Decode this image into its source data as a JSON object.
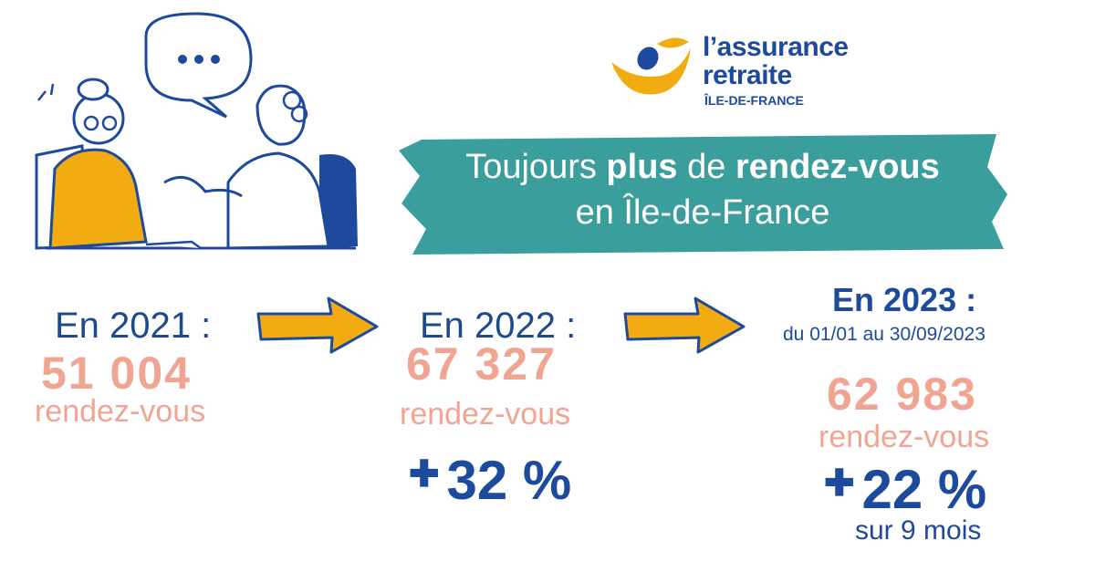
{
  "logo": {
    "line1": "l’assurance",
    "line2": "retraite",
    "region": "ÎLE-DE-FRANCE"
  },
  "banner": {
    "part1": "Toujours ",
    "bold1": "plus",
    "part2": " de ",
    "bold2": "rendez-vous",
    "line2": "en Île-de-France"
  },
  "stats": {
    "y2021": {
      "label": "En 2021 :",
      "value": "51 004",
      "unit": "rendez-vous"
    },
    "y2022": {
      "label": "En 2022 :",
      "value": "67 327",
      "unit": "rendez-vous",
      "change": "32 %"
    },
    "y2023": {
      "label": "En 2023 :",
      "period": "du 01/01 au 30/09/2023",
      "value": "62 983",
      "unit": "rendez-vous",
      "change": "22 %",
      "note": "sur 9 mois"
    }
  },
  "colors": {
    "navy": "#1d4a9c",
    "salmon": "#f0a593",
    "teal": "#3a9e9c",
    "gold": "#f2ac12"
  }
}
